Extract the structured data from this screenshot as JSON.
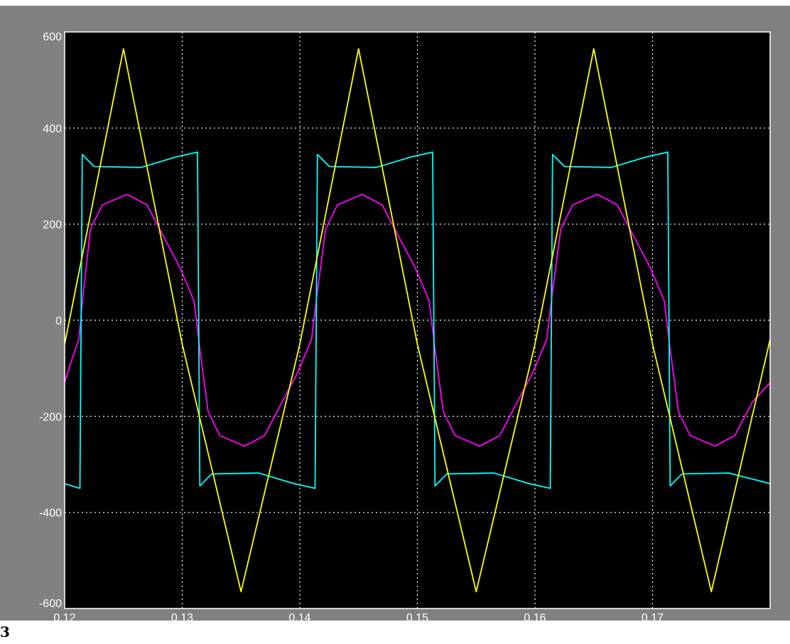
{
  "corner_label": "3",
  "chart_data": {
    "type": "line",
    "title": "",
    "xlabel": "",
    "ylabel": "",
    "xlim": [
      0.12,
      0.18
    ],
    "ylim": [
      -600,
      600
    ],
    "x_ticks": [
      0.12,
      0.13,
      0.14,
      0.15,
      0.16,
      0.17
    ],
    "x_tick_labels": [
      "0.12",
      "0.13",
      "0.14",
      "0.15",
      "0.16",
      "0.17"
    ],
    "y_ticks": [
      -600,
      -400,
      -200,
      0,
      200,
      400,
      600
    ],
    "y_tick_labels": [
      "-600",
      "-400",
      "-200",
      "0",
      "200",
      "400",
      "600"
    ],
    "grid": true,
    "legend": "none",
    "colors": {
      "frame": "#808080",
      "axes_background": "#000000",
      "grid": "#ffffff",
      "tick_text": "#ffffff"
    },
    "series": [
      {
        "color": "#ffff00",
        "shape": "sine",
        "period": 0.02,
        "points": [
          [
            0.12,
            -50
          ],
          [
            0.125,
            565
          ],
          [
            0.13,
            -50
          ],
          [
            0.135,
            -565
          ],
          [
            0.14,
            -50
          ],
          [
            0.145,
            565
          ],
          [
            0.15,
            -50
          ],
          [
            0.155,
            -565
          ],
          [
            0.16,
            -50
          ],
          [
            0.165,
            565
          ],
          [
            0.17,
            -50
          ],
          [
            0.175,
            -565
          ],
          [
            0.18,
            -40
          ]
        ]
      },
      {
        "color": "#00ffff",
        "shape": "square",
        "period": 0.02,
        "points": [
          [
            0.12,
            -340
          ],
          [
            0.1213,
            -350
          ],
          [
            0.1215,
            345
          ],
          [
            0.1225,
            320
          ],
          [
            0.1265,
            318
          ],
          [
            0.1295,
            340
          ],
          [
            0.1313,
            350
          ],
          [
            0.1315,
            -345
          ],
          [
            0.1325,
            -320
          ],
          [
            0.1365,
            -318
          ],
          [
            0.1395,
            -340
          ],
          [
            0.1413,
            -350
          ],
          [
            0.1415,
            345
          ],
          [
            0.1425,
            320
          ],
          [
            0.1465,
            318
          ],
          [
            0.1495,
            340
          ],
          [
            0.1513,
            350
          ],
          [
            0.1515,
            -345
          ],
          [
            0.1525,
            -320
          ],
          [
            0.1565,
            -318
          ],
          [
            0.1595,
            -340
          ],
          [
            0.1613,
            -350
          ],
          [
            0.1615,
            345
          ],
          [
            0.1625,
            320
          ],
          [
            0.1665,
            318
          ],
          [
            0.1695,
            340
          ],
          [
            0.1713,
            350
          ],
          [
            0.1715,
            -345
          ],
          [
            0.1725,
            -320
          ],
          [
            0.1765,
            -318
          ],
          [
            0.18,
            -340
          ]
        ]
      },
      {
        "color": "#ff00ff",
        "shape": "distorted-sine",
        "period": 0.02,
        "points": [
          [
            0.12,
            -130
          ],
          [
            0.1205,
            -90
          ],
          [
            0.1212,
            -40
          ],
          [
            0.1216,
            60
          ],
          [
            0.1222,
            190
          ],
          [
            0.1232,
            240
          ],
          [
            0.1253,
            262
          ],
          [
            0.127,
            240
          ],
          [
            0.1285,
            170
          ],
          [
            0.1298,
            110
          ],
          [
            0.131,
            40
          ],
          [
            0.1315,
            -60
          ],
          [
            0.1322,
            -190
          ],
          [
            0.1332,
            -240
          ],
          [
            0.1353,
            -262
          ],
          [
            0.137,
            -240
          ],
          [
            0.1385,
            -170
          ],
          [
            0.1398,
            -110
          ],
          [
            0.141,
            -40
          ],
          [
            0.1415,
            60
          ],
          [
            0.1422,
            190
          ],
          [
            0.1432,
            240
          ],
          [
            0.1453,
            262
          ],
          [
            0.147,
            240
          ],
          [
            0.1485,
            170
          ],
          [
            0.1498,
            110
          ],
          [
            0.151,
            40
          ],
          [
            0.1515,
            -60
          ],
          [
            0.1522,
            -190
          ],
          [
            0.1532,
            -240
          ],
          [
            0.1553,
            -262
          ],
          [
            0.157,
            -240
          ],
          [
            0.1585,
            -170
          ],
          [
            0.1598,
            -110
          ],
          [
            0.161,
            -40
          ],
          [
            0.1615,
            60
          ],
          [
            0.1622,
            190
          ],
          [
            0.1632,
            240
          ],
          [
            0.1653,
            262
          ],
          [
            0.167,
            240
          ],
          [
            0.1685,
            170
          ],
          [
            0.1698,
            110
          ],
          [
            0.171,
            40
          ],
          [
            0.1715,
            -60
          ],
          [
            0.1722,
            -190
          ],
          [
            0.1732,
            -240
          ],
          [
            0.1753,
            -262
          ],
          [
            0.177,
            -240
          ],
          [
            0.1785,
            -170
          ],
          [
            0.18,
            -130
          ]
        ]
      }
    ]
  }
}
